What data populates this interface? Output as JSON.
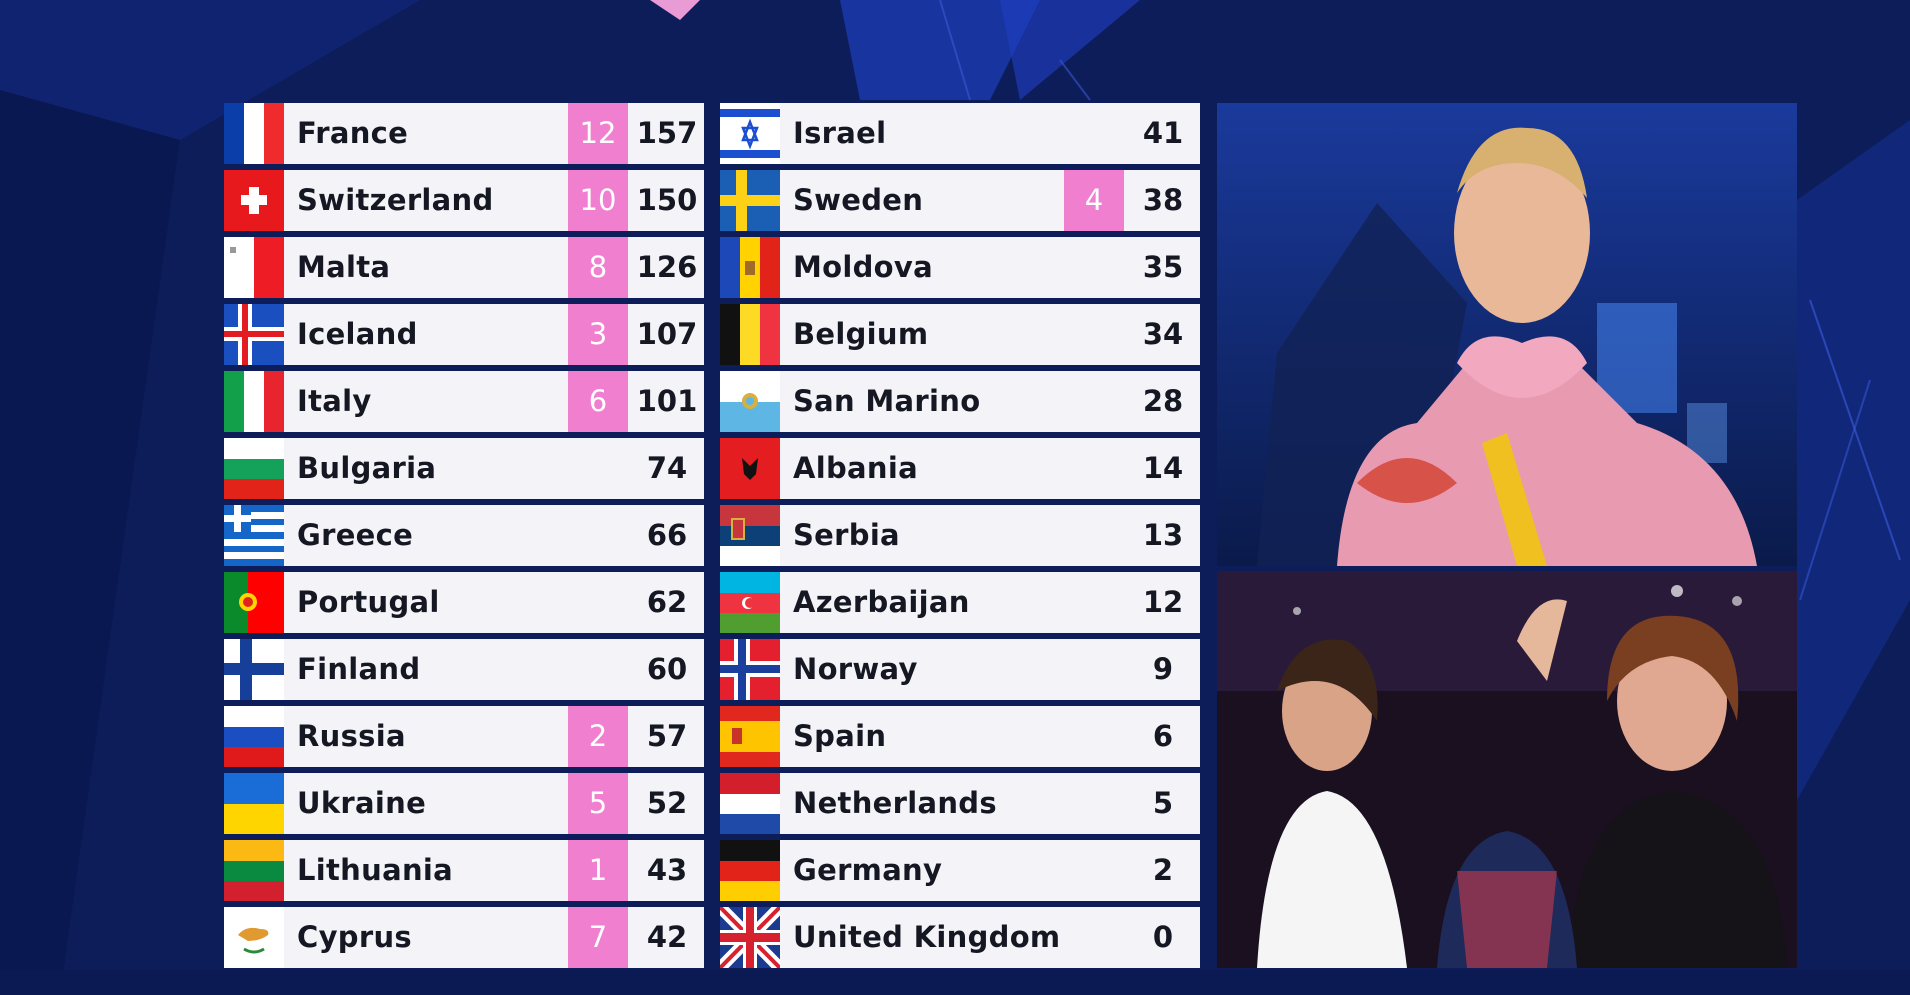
{
  "colors": {
    "background": "#0d1d5a",
    "row_bg": "#f4f4f8",
    "award_bg": "#f07fcf",
    "text": "#151823"
  },
  "scoreboard": {
    "left": [
      {
        "country": "France",
        "award": "12",
        "points": "157",
        "flag": "france"
      },
      {
        "country": "Switzerland",
        "award": "10",
        "points": "150",
        "flag": "switzerland"
      },
      {
        "country": "Malta",
        "award": "8",
        "points": "126",
        "flag": "malta"
      },
      {
        "country": "Iceland",
        "award": "3",
        "points": "107",
        "flag": "iceland"
      },
      {
        "country": "Italy",
        "award": "6",
        "points": "101",
        "flag": "italy"
      },
      {
        "country": "Bulgaria",
        "award": "",
        "points": "74",
        "flag": "bulgaria"
      },
      {
        "country": "Greece",
        "award": "",
        "points": "66",
        "flag": "greece"
      },
      {
        "country": "Portugal",
        "award": "",
        "points": "62",
        "flag": "portugal"
      },
      {
        "country": "Finland",
        "award": "",
        "points": "60",
        "flag": "finland"
      },
      {
        "country": "Russia",
        "award": "2",
        "points": "57",
        "flag": "russia"
      },
      {
        "country": "Ukraine",
        "award": "5",
        "points": "52",
        "flag": "ukraine"
      },
      {
        "country": "Lithuania",
        "award": "1",
        "points": "43",
        "flag": "lithuania"
      },
      {
        "country": "Cyprus",
        "award": "7",
        "points": "42",
        "flag": "cyprus"
      }
    ],
    "right": [
      {
        "country": "Israel",
        "award": "",
        "points": "41",
        "flag": "israel"
      },
      {
        "country": "Sweden",
        "award": "4",
        "points": "38",
        "flag": "sweden"
      },
      {
        "country": "Moldova",
        "award": "",
        "points": "35",
        "flag": "moldova"
      },
      {
        "country": "Belgium",
        "award": "",
        "points": "34",
        "flag": "belgium"
      },
      {
        "country": "San Marino",
        "award": "",
        "points": "28",
        "flag": "san-marino"
      },
      {
        "country": "Albania",
        "award": "",
        "points": "14",
        "flag": "albania"
      },
      {
        "country": "Serbia",
        "award": "",
        "points": "13",
        "flag": "serbia"
      },
      {
        "country": "Azerbaijan",
        "award": "",
        "points": "12",
        "flag": "azerbaijan"
      },
      {
        "country": "Norway",
        "award": "",
        "points": "9",
        "flag": "norway"
      },
      {
        "country": "Spain",
        "award": "",
        "points": "6",
        "flag": "spain"
      },
      {
        "country": "Netherlands",
        "award": "",
        "points": "5",
        "flag": "netherlands"
      },
      {
        "country": "Germany",
        "award": "",
        "points": "2",
        "flag": "germany"
      },
      {
        "country": "United Kingdom",
        "award": "",
        "points": "0",
        "flag": "united-kingdom"
      }
    ]
  },
  "videos": {
    "top": {
      "icon": "spokesperson-video-icon"
    },
    "bottom": {
      "icon": "green-room-video-icon"
    }
  }
}
